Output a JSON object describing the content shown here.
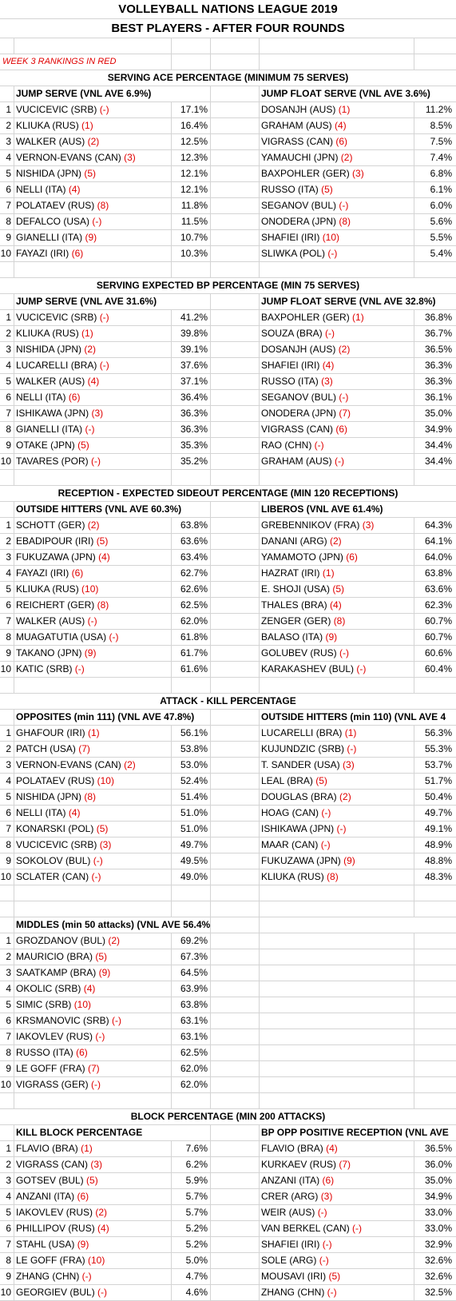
{
  "title": "VOLLEYBALL NATIONS LEAGUE 2019",
  "subtitle": "BEST PLAYERS - AFTER FOUR ROUNDS",
  "note": "WEEK 3 RANKINGS IN RED",
  "sections": [
    {
      "title": "SERVING ACE PERCENTAGE (MINIMUM 75 SERVES)",
      "left_header": "JUMP SERVE (VNL AVE  6.9%)",
      "right_header": "JUMP FLOAT SERVE (VNL AVE 3.6%)",
      "rows": [
        {
          "rank": "1",
          "lp": "VUCICEVIC (SRB)",
          "lr": "(-)",
          "lv": "17.1%",
          "rp": "DOSANJH (AUS)",
          "rr": "(1)",
          "rv": "11.2%"
        },
        {
          "rank": "2",
          "lp": "KLIUKA (RUS)",
          "lr": "(1)",
          "lv": "16.4%",
          "rp": "GRAHAM (AUS)",
          "rr": "(4)",
          "rv": "8.5%"
        },
        {
          "rank": "3",
          "lp": "WALKER (AUS)",
          "lr": "(2)",
          "lv": "12.5%",
          "rp": "VIGRASS (CAN)",
          "rr": "(6)",
          "rv": "7.5%"
        },
        {
          "rank": "4",
          "lp": "VERNON-EVANS (CAN)",
          "lr": "(3)",
          "lv": "12.3%",
          "rp": "YAMAUCHI (JPN)",
          "rr": "(2)",
          "rv": "7.4%"
        },
        {
          "rank": "5",
          "lp": "NISHIDA (JPN)",
          "lr": "(5)",
          "lv": "12.1%",
          "rp": "BAXPOHLER (GER)",
          "rr": "(3)",
          "rv": "6.8%"
        },
        {
          "rank": "6",
          "lp": "NELLI (ITA)",
          "lr": "(4)",
          "lv": "12.1%",
          "rp": "RUSSO (ITA)",
          "rr": "(5)",
          "rv": "6.1%"
        },
        {
          "rank": "7",
          "lp": "POLATAEV (RUS)",
          "lr": "(8)",
          "lv": "11.8%",
          "rp": "SEGANOV (BUL)",
          "rr": "(-)",
          "rv": "6.0%"
        },
        {
          "rank": "8",
          "lp": "DEFALCO (USA)",
          "lr": "(-)",
          "lv": "11.5%",
          "rp": "ONODERA (JPN)",
          "rr": "(8)",
          "rv": "5.6%"
        },
        {
          "rank": "9",
          "lp": "GIANELLI (ITA)",
          "lr": "(9)",
          "lv": "10.7%",
          "rp": "SHAFIEI (IRI)",
          "rr": "(10)",
          "rv": "5.5%"
        },
        {
          "rank": "10",
          "lp": "FAYAZI (IRI)",
          "lr": "(6)",
          "lv": "10.3%",
          "rp": "SLIWKA (POL)",
          "rr": "(-)",
          "rv": "5.4%"
        }
      ]
    },
    {
      "title": "SERVING EXPECTED BP PERCENTAGE (MIN 75 SERVES)",
      "left_header": "JUMP SERVE (VNL AVE 31.6%)",
      "right_header": "JUMP FLOAT SERVE (VNL AVE 32.8%)",
      "rows": [
        {
          "rank": "1",
          "lp": "VUCICEVIC (SRB)",
          "lr": "(-)",
          "lv": "41.2%",
          "rp": "BAXPOHLER (GER)",
          "rr": "(1)",
          "rv": "36.8%"
        },
        {
          "rank": "2",
          "lp": "KLIUKA (RUS)",
          "lr": "(1)",
          "lv": "39.8%",
          "rp": "SOUZA (BRA)",
          "rr": "(-)",
          "rv": "36.7%"
        },
        {
          "rank": "3",
          "lp": "NISHIDA (JPN)",
          "lr": "(2)",
          "lv": "39.1%",
          "rp": "DOSANJH (AUS)",
          "rr": "(2)",
          "rv": "36.5%"
        },
        {
          "rank": "4",
          "lp": "LUCARELLI (BRA)",
          "lr": "(-)",
          "lv": "37.6%",
          "rp": "SHAFIEI (IRI)",
          "rr": "(4)",
          "rv": "36.3%"
        },
        {
          "rank": "5",
          "lp": "WALKER (AUS)",
          "lr": "(4)",
          "lv": "37.1%",
          "rp": "RUSSO (ITA)",
          "rr": "(3)",
          "rv": "36.3%"
        },
        {
          "rank": "6",
          "lp": "NELLI (ITA)",
          "lr": "(6)",
          "lv": "36.4%",
          "rp": "SEGANOV (BUL)",
          "rr": "(-)",
          "rv": "36.1%"
        },
        {
          "rank": "7",
          "lp": "ISHIKAWA (JPN)",
          "lr": "(3)",
          "lv": "36.3%",
          "rp": "ONODERA (JPN)",
          "rr": "(7)",
          "rv": "35.0%"
        },
        {
          "rank": "8",
          "lp": "GIANELLI (ITA)",
          "lr": "(-)",
          "lv": "36.3%",
          "rp": "VIGRASS (CAN)",
          "rr": "(6)",
          "rv": "34.9%"
        },
        {
          "rank": "9",
          "lp": "OTAKE (JPN)",
          "lr": "(5)",
          "lv": "35.3%",
          "rp": "RAO (CHN)",
          "rr": "(-)",
          "rv": "34.4%"
        },
        {
          "rank": "10",
          "lp": "TAVARES (POR)",
          "lr": "(-)",
          "lv": "35.2%",
          "rp": "GRAHAM (AUS)",
          "rr": "(-)",
          "rv": "34.4%"
        }
      ]
    },
    {
      "title": "RECEPTION - EXPECTED SIDEOUT PERCENTAGE (MIN 120 RECEPTIONS)",
      "left_header": "OUTSIDE HITTERS (VNL AVE 60.3%)",
      "right_header": "LIBEROS (VNL AVE 61.4%)",
      "rows": [
        {
          "rank": "1",
          "lp": "SCHOTT (GER)",
          "lr": "(2)",
          "lv": "63.8%",
          "rp": "GREBENNIKOV (FRA)",
          "rr": "(3)",
          "rv": "64.3%"
        },
        {
          "rank": "2",
          "lp": "EBADIPOUR (IRI)",
          "lr": "(5)",
          "lv": "63.6%",
          "rp": "DANANI (ARG)",
          "rr": "(2)",
          "rv": "64.1%"
        },
        {
          "rank": "3",
          "lp": "FUKUZAWA (JPN)",
          "lr": "(4)",
          "lv": "63.4%",
          "rp": "YAMAMOTO (JPN)",
          "rr": "(6)",
          "rv": "64.0%"
        },
        {
          "rank": "4",
          "lp": "FAYAZI (IRI)",
          "lr": "(6)",
          "lv": "62.7%",
          "rp": "HAZRAT (IRI)",
          "rr": "(1)",
          "rv": "63.8%"
        },
        {
          "rank": "5",
          "lp": "KLIUKA (RUS)",
          "lr": "(10)",
          "lv": "62.6%",
          "rp": "E. SHOJI (USA)",
          "rr": "(5)",
          "rv": "63.6%"
        },
        {
          "rank": "6",
          "lp": "REICHERT (GER)",
          "lr": "(8)",
          "lv": "62.5%",
          "rp": "THALES (BRA)",
          "rr": "(4)",
          "rv": "62.3%"
        },
        {
          "rank": "7",
          "lp": "WALKER (AUS)",
          "lr": "(-)",
          "lv": "62.0%",
          "rp": "ZENGER (GER)",
          "rr": "(8)",
          "rv": "60.7%"
        },
        {
          "rank": "8",
          "lp": "MUAGATUTIA (USA)",
          "lr": "(-)",
          "lv": "61.8%",
          "rp": "BALASO (ITA)",
          "rr": "(9)",
          "rv": "60.7%"
        },
        {
          "rank": "9",
          "lp": "TAKANO (JPN)",
          "lr": "(9)",
          "lv": "61.7%",
          "rp": "GOLUBEV (RUS)",
          "rr": "(-)",
          "rv": "60.6%"
        },
        {
          "rank": "10",
          "lp": "KATIC (SRB)",
          "lr": "(-)",
          "lv": "61.6%",
          "rp": "KARAKASHEV (BUL)",
          "rr": "(-)",
          "rv": "60.4%"
        }
      ]
    },
    {
      "title": "ATTACK - KILL PERCENTAGE",
      "left_header": "OPPOSITES (min 111) (VNL AVE 47.8%)",
      "right_header": "OUTSIDE HITTERS (min 110)  (VNL AVE 4",
      "rows": [
        {
          "rank": "1",
          "lp": "GHAFOUR (IRI)",
          "lr": "(1)",
          "lv": "56.1%",
          "rp": "LUCARELLI (BRA)",
          "rr": "(1)",
          "rv": "56.3%"
        },
        {
          "rank": "2",
          "lp": "PATCH (USA)",
          "lr": "(7)",
          "lv": "53.8%",
          "rp": "KUJUNDZIC (SRB)",
          "rr": "(-)",
          "rv": "55.3%"
        },
        {
          "rank": "3",
          "lp": "VERNON-EVANS (CAN)",
          "lr": "(2)",
          "lv": "53.0%",
          "rp": "T. SANDER (USA)",
          "rr": "(3)",
          "rv": "53.7%"
        },
        {
          "rank": "4",
          "lp": "POLATAEV (RUS)",
          "lr": "(10)",
          "lv": "52.4%",
          "rp": "LEAL (BRA)",
          "rr": "(5)",
          "rv": "51.7%"
        },
        {
          "rank": "5",
          "lp": "NISHIDA (JPN)",
          "lr": "(8)",
          "lv": "51.4%",
          "rp": "DOUGLAS (BRA)",
          "rr": "(2)",
          "rv": "50.4%"
        },
        {
          "rank": "6",
          "lp": "NELLI (ITA)",
          "lr": "(4)",
          "lv": "51.0%",
          "rp": "HOAG (CAN)",
          "rr": "(-)",
          "rv": "49.7%"
        },
        {
          "rank": "7",
          "lp": "KONARSKI (POL)",
          "lr": "(5)",
          "lv": "51.0%",
          "rp": "ISHIKAWA (JPN)",
          "rr": "(-)",
          "rv": "49.1%"
        },
        {
          "rank": "8",
          "lp": "VUCICEVIC (SRB)",
          "lr": "(3)",
          "lv": "49.7%",
          "rp": "MAAR (CAN)",
          "rr": "(-)",
          "rv": "48.9%"
        },
        {
          "rank": "9",
          "lp": "SOKOLOV (BUL)",
          "lr": "(-)",
          "lv": "49.5%",
          "rp": "FUKUZAWA (JPN)",
          "rr": "(9)",
          "rv": "48.8%"
        },
        {
          "rank": "10",
          "lp": "SCLATER (CAN)",
          "lr": "(-)",
          "lv": "49.0%",
          "rp": "KLIUKA (RUS)",
          "rr": "(8)",
          "rv": "48.3%"
        }
      ]
    },
    {
      "title": "",
      "left_header": "MIDDLES (min 50 attacks) (VNL AVE 56.4%)",
      "right_header": "",
      "rows": [
        {
          "rank": "1",
          "lp": "GROZDANOV (BUL)",
          "lr": "(2)",
          "lv": "69.2%",
          "rp": "",
          "rr": "",
          "rv": ""
        },
        {
          "rank": "2",
          "lp": "MAURICIO (BRA)",
          "lr": "(5)",
          "lv": "67.3%",
          "rp": "",
          "rr": "",
          "rv": ""
        },
        {
          "rank": "3",
          "lp": "SAATKAMP (BRA)",
          "lr": "(9)",
          "lv": "64.5%",
          "rp": "",
          "rr": "",
          "rv": ""
        },
        {
          "rank": "4",
          "lp": "OKOLIC (SRB)",
          "lr": "(4)",
          "lv": "63.9%",
          "rp": "",
          "rr": "",
          "rv": ""
        },
        {
          "rank": "5",
          "lp": "SIMIC (SRB)",
          "lr": "(10)",
          "lv": "63.8%",
          "rp": "",
          "rr": "",
          "rv": ""
        },
        {
          "rank": "6",
          "lp": "KRSMANOVIC (SRB)",
          "lr": "(-)",
          "lv": "63.1%",
          "rp": "",
          "rr": "",
          "rv": ""
        },
        {
          "rank": "7",
          "lp": "IAKOVLEV (RUS)",
          "lr": "(-)",
          "lv": "63.1%",
          "rp": "",
          "rr": "",
          "rv": ""
        },
        {
          "rank": "8",
          "lp": "RUSSO (ITA)",
          "lr": "(6)",
          "lv": "62.5%",
          "rp": "",
          "rr": "",
          "rv": ""
        },
        {
          "rank": "9",
          "lp": "LE GOFF (FRA)",
          "lr": "(7)",
          "lv": "62.0%",
          "rp": "",
          "rr": "",
          "rv": ""
        },
        {
          "rank": "10",
          "lp": "VIGRASS (GER)",
          "lr": "(-)",
          "lv": "62.0%",
          "rp": "",
          "rr": "",
          "rv": ""
        }
      ]
    },
    {
      "title": "BLOCK PERCENTAGE (MIN 200 ATTACKS)",
      "left_header": "KILL BLOCK PERCENTAGE",
      "right_header": "BP OPP POSITIVE RECEPTION (VNL AVE",
      "rows": [
        {
          "rank": "1",
          "lp": "FLAVIO (BRA)",
          "lr": "(1)",
          "lv": "7.6%",
          "rp": "FLAVIO (BRA)",
          "rr": "(4)",
          "rv": "36.5%"
        },
        {
          "rank": "2",
          "lp": "VIGRASS (CAN)",
          "lr": "(3)",
          "lv": "6.2%",
          "rp": "KURKAEV (RUS)",
          "rr": "(7)",
          "rv": "36.0%"
        },
        {
          "rank": "3",
          "lp": "GOTSEV (BUL)",
          "lr": "(5)",
          "lv": "5.9%",
          "rp": "ANZANI (ITA)",
          "rr": "(6)",
          "rv": "35.0%"
        },
        {
          "rank": "4",
          "lp": "ANZANI (ITA)",
          "lr": "(6)",
          "lv": "5.7%",
          "rp": "CRER (ARG)",
          "rr": "(3)",
          "rv": "34.9%"
        },
        {
          "rank": "5",
          "lp": "IAKOVLEV (RUS)",
          "lr": "(2)",
          "lv": "5.7%",
          "rp": "WEIR (AUS)",
          "rr": "(-)",
          "rv": "33.0%"
        },
        {
          "rank": "6",
          "lp": "PHILLIPOV (RUS)",
          "lr": "(4)",
          "lv": "5.2%",
          "rp": "VAN BERKEL (CAN)",
          "rr": "(-)",
          "rv": "33.0%"
        },
        {
          "rank": "7",
          "lp": "STAHL (USA)",
          "lr": "(9)",
          "lv": "5.2%",
          "rp": "SHAFIEI (IRI)",
          "rr": "(-)",
          "rv": "32.9%"
        },
        {
          "rank": "8",
          "lp": "LE GOFF (FRA)",
          "lr": "(10)",
          "lv": "5.0%",
          "rp": "SOLE (ARG)",
          "rr": "(-)",
          "rv": "32.6%"
        },
        {
          "rank": "9",
          "lp": "ZHANG (CHN)",
          "lr": "(-)",
          "lv": "4.7%",
          "rp": "MOUSAVI (IRI)",
          "rr": "(5)",
          "rv": "32.6%"
        },
        {
          "rank": "10",
          "lp": "GEORGIEV (BUL)",
          "lr": "(-)",
          "lv": "4.6%",
          "rp": "ZHANG (CHN)",
          "rr": "(-)",
          "rv": "32.5%"
        }
      ]
    }
  ],
  "colors": {
    "rank_red": "#e00000",
    "grid": "#d4d4d4"
  }
}
